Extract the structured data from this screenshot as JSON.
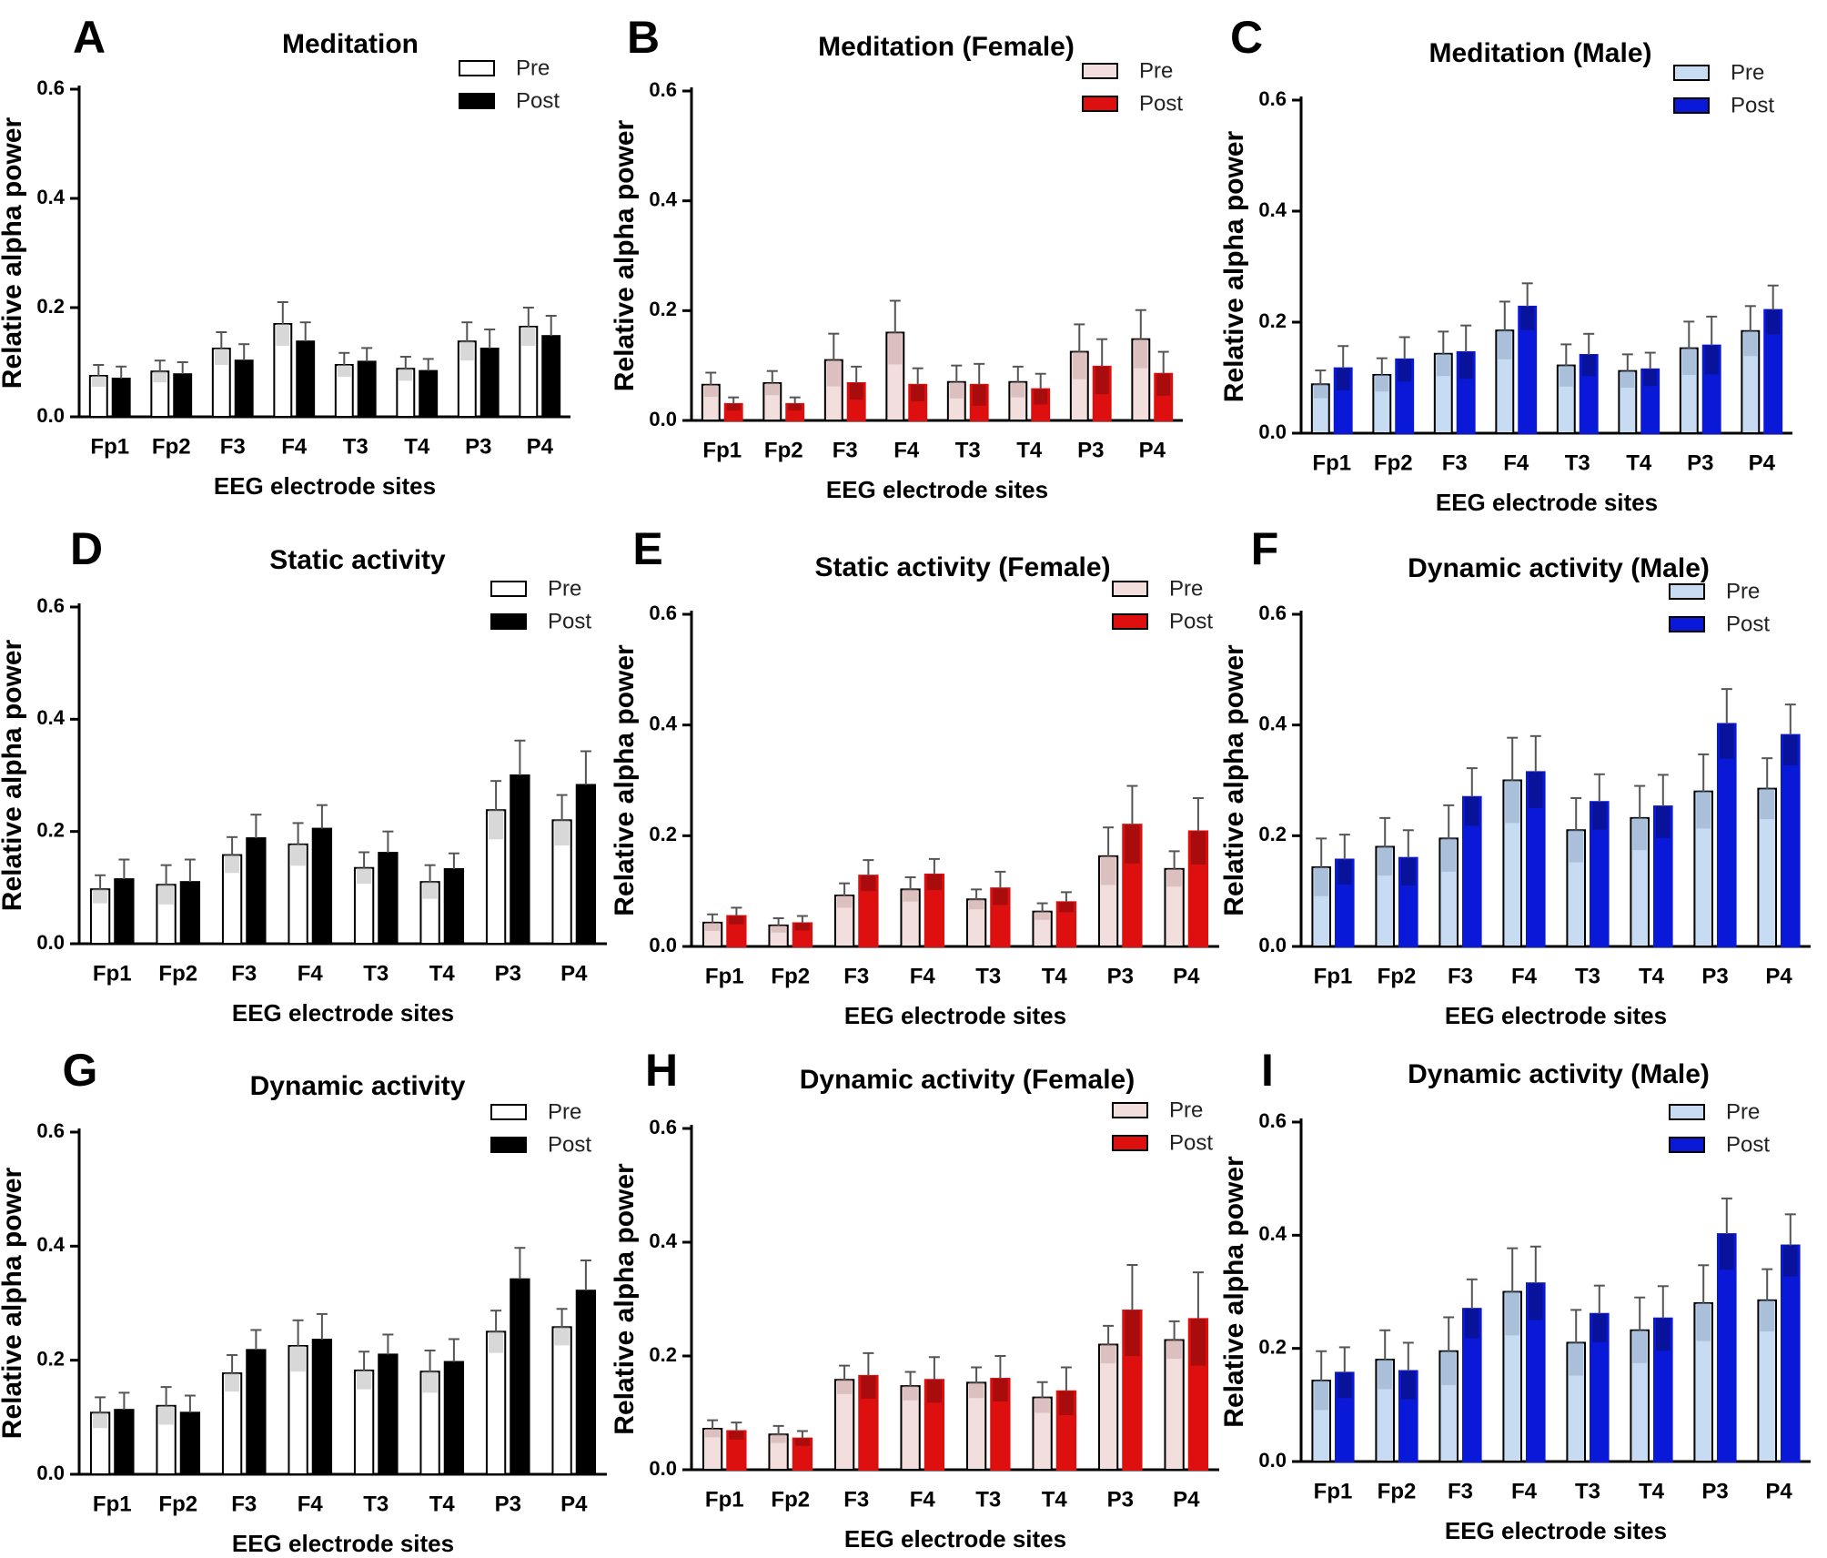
{
  "figure": {
    "ylabel": "Relative alpha power",
    "xlabel": "EEG electrode sites",
    "yticks": [
      "0.0",
      "0.2",
      "0.4",
      "0.6"
    ],
    "colors": {
      "black": {
        "pre_fill": "#ffffff",
        "pre_err": "#b8b8b8",
        "post": "#000000"
      },
      "red": {
        "pre_fill": "#f3dede",
        "pre_err": "#c9a7a7",
        "post": "#dd0f0f"
      },
      "blue": {
        "pre_fill": "#c7dcf3",
        "pre_err": "#8fa7c4",
        "post": "#0a18d8"
      }
    }
  },
  "chart_data": [
    {
      "panel": "A",
      "title": "Meditation",
      "type": "bar",
      "scheme": "black",
      "categories": [
        "Fp1",
        "Fp2",
        "F3",
        "F4",
        "T3",
        "T4",
        "P3",
        "P4"
      ],
      "ylim": [
        0,
        0.6
      ],
      "xlabel": "EEG electrode sites",
      "ylabel": "Relative alpha power",
      "legend": [
        "Pre",
        "Post"
      ],
      "series": [
        {
          "name": "Pre",
          "values": [
            0.075,
            0.083,
            0.125,
            0.17,
            0.095,
            0.088,
            0.138,
            0.165
          ],
          "errors": [
            0.02,
            0.02,
            0.03,
            0.04,
            0.022,
            0.022,
            0.035,
            0.035
          ]
        },
        {
          "name": "Post",
          "values": [
            0.07,
            0.078,
            0.103,
            0.138,
            0.101,
            0.084,
            0.125,
            0.148
          ],
          "errors": [
            0.022,
            0.022,
            0.03,
            0.035,
            0.025,
            0.022,
            0.035,
            0.037
          ]
        }
      ]
    },
    {
      "panel": "B",
      "title": "Meditation (Female)",
      "type": "bar",
      "scheme": "red",
      "categories": [
        "Fp1",
        "Fp2",
        "F3",
        "F4",
        "T3",
        "T4",
        "P3",
        "P4"
      ],
      "ylim": [
        0,
        0.6
      ],
      "xlabel": "EEG electrode sites",
      "ylabel": "Relative alpha power",
      "legend": [
        "Pre",
        "Post"
      ],
      "series": [
        {
          "name": "Pre",
          "values": [
            0.065,
            0.068,
            0.11,
            0.16,
            0.07,
            0.07,
            0.125,
            0.148
          ],
          "errors": [
            0.022,
            0.022,
            0.048,
            0.058,
            0.03,
            0.028,
            0.05,
            0.053
          ]
        },
        {
          "name": "Post",
          "values": [
            0.03,
            0.03,
            0.068,
            0.065,
            0.065,
            0.057,
            0.098,
            0.085
          ],
          "errors": [
            0.012,
            0.012,
            0.03,
            0.03,
            0.038,
            0.028,
            0.05,
            0.04
          ]
        }
      ]
    },
    {
      "panel": "C",
      "title": "Meditation (Male)",
      "type": "bar",
      "scheme": "blue",
      "categories": [
        "Fp1",
        "Fp2",
        "F3",
        "F4",
        "T3",
        "T4",
        "P3",
        "P4"
      ],
      "ylim": [
        0,
        0.6
      ],
      "xlabel": "EEG electrode sites",
      "ylabel": "Relative alpha power",
      "legend": [
        "Pre",
        "Post"
      ],
      "series": [
        {
          "name": "Pre",
          "values": [
            0.088,
            0.105,
            0.143,
            0.185,
            0.122,
            0.112,
            0.153,
            0.184
          ],
          "errors": [
            0.025,
            0.03,
            0.04,
            0.052,
            0.038,
            0.03,
            0.048,
            0.045
          ]
        },
        {
          "name": "Post",
          "values": [
            0.117,
            0.133,
            0.146,
            0.228,
            0.141,
            0.115,
            0.158,
            0.222
          ],
          "errors": [
            0.04,
            0.04,
            0.048,
            0.042,
            0.038,
            0.03,
            0.052,
            0.044
          ]
        }
      ]
    },
    {
      "panel": "D",
      "title": "Static activity",
      "type": "bar",
      "scheme": "black",
      "categories": [
        "Fp1",
        "Fp2",
        "F3",
        "F4",
        "T3",
        "T4",
        "P3",
        "P4"
      ],
      "ylim": [
        0,
        0.6
      ],
      "xlabel": "EEG electrode sites",
      "ylabel": "Relative alpha power",
      "legend": [
        "Pre",
        "Post"
      ],
      "series": [
        {
          "name": "Pre",
          "values": [
            0.097,
            0.105,
            0.158,
            0.177,
            0.135,
            0.11,
            0.238,
            0.22
          ],
          "errors": [
            0.025,
            0.035,
            0.032,
            0.038,
            0.028,
            0.03,
            0.052,
            0.045
          ]
        },
        {
          "name": "Post",
          "values": [
            0.115,
            0.11,
            0.188,
            0.205,
            0.162,
            0.133,
            0.3,
            0.283
          ],
          "errors": [
            0.035,
            0.04,
            0.042,
            0.042,
            0.038,
            0.028,
            0.062,
            0.06
          ]
        }
      ]
    },
    {
      "panel": "E",
      "title": "Static activity (Female)",
      "type": "bar",
      "scheme": "red",
      "categories": [
        "Fp1",
        "Fp2",
        "F3",
        "F4",
        "T3",
        "T4",
        "P3",
        "P4"
      ],
      "ylim": [
        0,
        0.6
      ],
      "xlabel": "EEG electrode sites",
      "ylabel": "Relative alpha power",
      "legend": [
        "Pre",
        "Post"
      ],
      "series": [
        {
          "name": "Pre",
          "values": [
            0.043,
            0.038,
            0.092,
            0.103,
            0.085,
            0.063,
            0.163,
            0.14
          ],
          "errors": [
            0.015,
            0.013,
            0.022,
            0.022,
            0.018,
            0.015,
            0.052,
            0.032
          ]
        },
        {
          "name": "Post",
          "values": [
            0.055,
            0.042,
            0.128,
            0.13,
            0.105,
            0.08,
            0.22,
            0.208
          ],
          "errors": [
            0.015,
            0.013,
            0.028,
            0.028,
            0.03,
            0.018,
            0.07,
            0.06
          ]
        }
      ]
    },
    {
      "panel": "F",
      "title": "Dynamic activity (Male)",
      "type": "bar",
      "scheme": "blue",
      "categories": [
        "Fp1",
        "Fp2",
        "F3",
        "F4",
        "T3",
        "T4",
        "P3",
        "P4"
      ],
      "ylim": [
        0,
        0.6
      ],
      "xlabel": "EEG electrode sites",
      "ylabel": "Relative alpha power",
      "legend": [
        "Pre",
        "Post"
      ],
      "series": [
        {
          "name": "Pre",
          "values": [
            0.143,
            0.18,
            0.195,
            0.3,
            0.21,
            0.232,
            0.28,
            0.285
          ],
          "errors": [
            0.052,
            0.052,
            0.06,
            0.077,
            0.058,
            0.058,
            0.067,
            0.055
          ]
        },
        {
          "name": "Post",
          "values": [
            0.157,
            0.16,
            0.27,
            0.315,
            0.261,
            0.253,
            0.402,
            0.382
          ],
          "errors": [
            0.045,
            0.05,
            0.052,
            0.065,
            0.05,
            0.057,
            0.063,
            0.055
          ]
        }
      ]
    },
    {
      "panel": "G",
      "title": "Dynamic activity",
      "type": "bar",
      "scheme": "black",
      "categories": [
        "Fp1",
        "Fp2",
        "F3",
        "F4",
        "T3",
        "T4",
        "P3",
        "P4"
      ],
      "ylim": [
        0,
        0.6
      ],
      "xlabel": "EEG electrode sites",
      "ylabel": "Relative alpha power",
      "legend": [
        "Pre",
        "Post"
      ],
      "series": [
        {
          "name": "Pre",
          "values": [
            0.108,
            0.12,
            0.177,
            0.225,
            0.182,
            0.18,
            0.25,
            0.258
          ],
          "errors": [
            0.027,
            0.033,
            0.032,
            0.045,
            0.033,
            0.037,
            0.037,
            0.032
          ]
        },
        {
          "name": "Post",
          "values": [
            0.113,
            0.108,
            0.218,
            0.236,
            0.21,
            0.197,
            0.342,
            0.322
          ],
          "errors": [
            0.03,
            0.03,
            0.035,
            0.045,
            0.035,
            0.04,
            0.055,
            0.053
          ]
        }
      ]
    },
    {
      "panel": "H",
      "title": "Dynamic activity (Female)",
      "type": "bar",
      "scheme": "red",
      "categories": [
        "Fp1",
        "Fp2",
        "F3",
        "F4",
        "T3",
        "T4",
        "P3",
        "P4"
      ],
      "ylim": [
        0,
        0.6
      ],
      "xlabel": "EEG electrode sites",
      "ylabel": "Relative alpha power",
      "legend": [
        "Pre",
        "Post"
      ],
      "series": [
        {
          "name": "Pre",
          "values": [
            0.072,
            0.062,
            0.158,
            0.147,
            0.153,
            0.127,
            0.22,
            0.228
          ],
          "errors": [
            0.015,
            0.015,
            0.025,
            0.025,
            0.027,
            0.027,
            0.033,
            0.033
          ]
        },
        {
          "name": "Post",
          "values": [
            0.068,
            0.055,
            0.165,
            0.158,
            0.16,
            0.138,
            0.28,
            0.265
          ],
          "errors": [
            0.015,
            0.013,
            0.04,
            0.04,
            0.04,
            0.042,
            0.08,
            0.082
          ]
        }
      ]
    },
    {
      "panel": "I",
      "title": "Dynamic activity (Male)",
      "type": "bar",
      "scheme": "blue",
      "categories": [
        "Fp1",
        "Fp2",
        "F3",
        "F4",
        "T3",
        "T4",
        "P3",
        "P4"
      ],
      "ylim": [
        0,
        0.6
      ],
      "xlabel": "EEG electrode sites",
      "ylabel": "Relative alpha power",
      "legend": [
        "Pre",
        "Post"
      ],
      "series": [
        {
          "name": "Pre",
          "values": [
            0.143,
            0.18,
            0.195,
            0.3,
            0.21,
            0.232,
            0.28,
            0.285
          ],
          "errors": [
            0.052,
            0.052,
            0.06,
            0.077,
            0.058,
            0.058,
            0.067,
            0.055
          ]
        },
        {
          "name": "Post",
          "values": [
            0.157,
            0.16,
            0.27,
            0.315,
            0.261,
            0.253,
            0.402,
            0.382
          ],
          "errors": [
            0.045,
            0.05,
            0.052,
            0.065,
            0.05,
            0.057,
            0.063,
            0.055
          ]
        }
      ]
    }
  ]
}
